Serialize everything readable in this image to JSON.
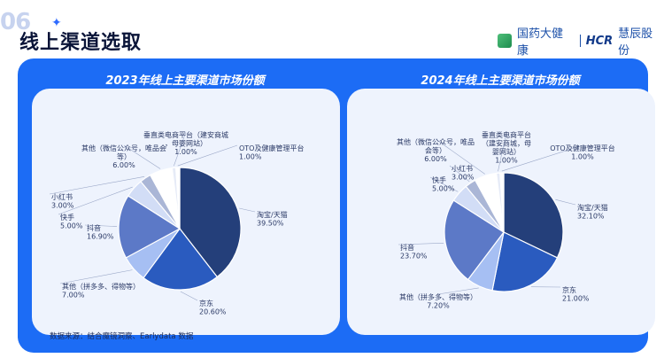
{
  "header": {
    "section_number": "06",
    "title": "线上渠道选取",
    "brand_left": "国药大健康",
    "brand_right_bold": "HCR",
    "brand_right": "慧辰股份"
  },
  "source_note": "数据来源：结合魔镜洞察、Earlydata 数据",
  "colors": {
    "panel": "#1c6cf5",
    "slices": [
      "#243f7a",
      "#2a5bbf",
      "#a6bff3",
      "#5c79c7",
      "#d2ddf6",
      "#aab6d6",
      "#ffffff",
      "#e6ebf7"
    ]
  },
  "chart_data": [
    {
      "type": "pie",
      "title": "2023年线上主要渠道市场份额",
      "slices": [
        {
          "name": "淘宝/天猫",
          "value": "39.50%",
          "pct": 39.5
        },
        {
          "name": "京东",
          "value": "20.60%",
          "pct": 20.6
        },
        {
          "name": "其他（拼多多、得物等）",
          "value": "7.00%",
          "pct": 7.0
        },
        {
          "name": "抖音",
          "value": "16.90%",
          "pct": 16.9
        },
        {
          "name": "快手",
          "value": "5.00%",
          "pct": 5.0
        },
        {
          "name": "小红书",
          "value": "3.00%",
          "pct": 3.0
        },
        {
          "name": "其他（微信公众号，唯品会等）",
          "value": "6.00%",
          "pct": 6.0
        },
        {
          "name": "垂直类电商平台（建安商城，母婴网站）",
          "value": "1.00%",
          "pct": 1.0
        },
        {
          "name": "OTO及健康管理平台",
          "value": "1.00%",
          "pct": 1.0
        }
      ]
    },
    {
      "type": "pie",
      "title": "2024年线上主要渠道市场份额",
      "slices": [
        {
          "name": "淘宝/天猫",
          "value": "32.10%",
          "pct": 32.1
        },
        {
          "name": "京东",
          "value": "21.00%",
          "pct": 21.0
        },
        {
          "name": "其他（拼多多、得物等）",
          "value": "7.20%",
          "pct": 7.2
        },
        {
          "name": "抖音",
          "value": "23.70%",
          "pct": 23.7
        },
        {
          "name": "快手",
          "value": "5.00%",
          "pct": 5.0
        },
        {
          "name": "小红书",
          "value": "3.00%",
          "pct": 3.0
        },
        {
          "name": "其他（微信公众号，唯品会等）",
          "value": "6.00%",
          "pct": 6.0
        },
        {
          "name": "垂直类电商平台（建安商城，母婴网站）",
          "value": "1.00%",
          "pct": 1.0
        },
        {
          "name": "OTO及健康管理平台",
          "value": "1.00%",
          "pct": 1.0
        }
      ]
    }
  ]
}
